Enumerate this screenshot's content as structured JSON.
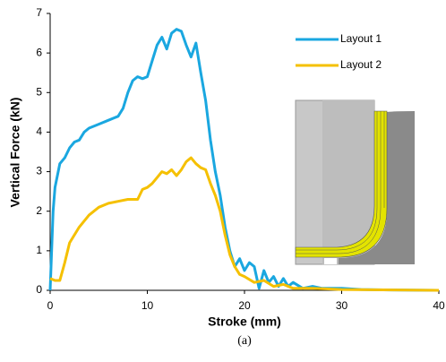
{
  "chart_data": {
    "type": "line",
    "x_label": "Stroke (mm)",
    "y_label": "Vertical Force (kN)",
    "caption": "(a)",
    "xlim": [
      0,
      40
    ],
    "xticks": [
      0,
      10,
      20,
      30,
      40
    ],
    "ylim": [
      0,
      7
    ],
    "yticks": [
      0,
      1,
      2,
      3,
      4,
      5,
      6,
      7
    ],
    "grid": false,
    "legend": "upper-right",
    "series": [
      {
        "name": "Layout 1",
        "color": "#1aa7e0",
        "x": [
          0,
          0.3,
          0.5,
          1,
          1.5,
          2,
          2.5,
          3,
          3.5,
          4,
          5,
          6,
          7,
          7.5,
          8,
          8.5,
          9,
          9.5,
          10,
          10.5,
          11,
          11.5,
          12,
          12.5,
          13,
          13.5,
          14,
          14.5,
          15,
          15.5,
          16,
          16.5,
          17,
          17.5,
          18,
          18.5,
          19,
          19.5,
          20,
          20.5,
          21,
          21.5,
          22,
          22.5,
          23,
          23.5,
          24,
          24.5,
          25,
          26,
          27,
          28,
          30,
          32,
          35,
          40
        ],
        "values": [
          0,
          2.0,
          2.6,
          3.2,
          3.35,
          3.6,
          3.75,
          3.8,
          4.0,
          4.1,
          4.2,
          4.3,
          4.4,
          4.6,
          5.0,
          5.3,
          5.4,
          5.35,
          5.4,
          5.8,
          6.2,
          6.4,
          6.1,
          6.5,
          6.6,
          6.55,
          6.2,
          5.9,
          6.25,
          5.5,
          4.8,
          3.8,
          3.0,
          2.4,
          1.6,
          1.0,
          0.6,
          0.8,
          0.5,
          0.7,
          0.6,
          0.05,
          0.5,
          0.2,
          0.35,
          0.1,
          0.3,
          0.1,
          0.2,
          0.05,
          0.1,
          0.05,
          0.05,
          0.02,
          0.01,
          0
        ]
      },
      {
        "name": "Layout 2",
        "color": "#f5c000",
        "x": [
          0,
          0.5,
          1,
          1.5,
          2,
          3,
          4,
          5,
          6,
          7,
          8,
          9,
          9.5,
          10,
          10.5,
          11,
          11.5,
          12,
          12.5,
          13,
          13.5,
          14,
          14.5,
          15,
          15.5,
          16,
          16.5,
          17,
          17.5,
          18,
          18.5,
          19,
          19.5,
          20,
          21,
          22,
          23,
          24,
          25,
          27,
          30,
          40
        ],
        "values": [
          0.3,
          0.25,
          0.25,
          0.7,
          1.2,
          1.6,
          1.9,
          2.1,
          2.2,
          2.25,
          2.3,
          2.3,
          2.55,
          2.6,
          2.7,
          2.85,
          3.0,
          2.95,
          3.05,
          2.9,
          3.05,
          3.25,
          3.35,
          3.2,
          3.1,
          3.05,
          2.7,
          2.4,
          2.0,
          1.4,
          0.9,
          0.6,
          0.4,
          0.35,
          0.2,
          0.25,
          0.1,
          0.15,
          0.05,
          0.05,
          0.02,
          0
        ]
      }
    ]
  }
}
